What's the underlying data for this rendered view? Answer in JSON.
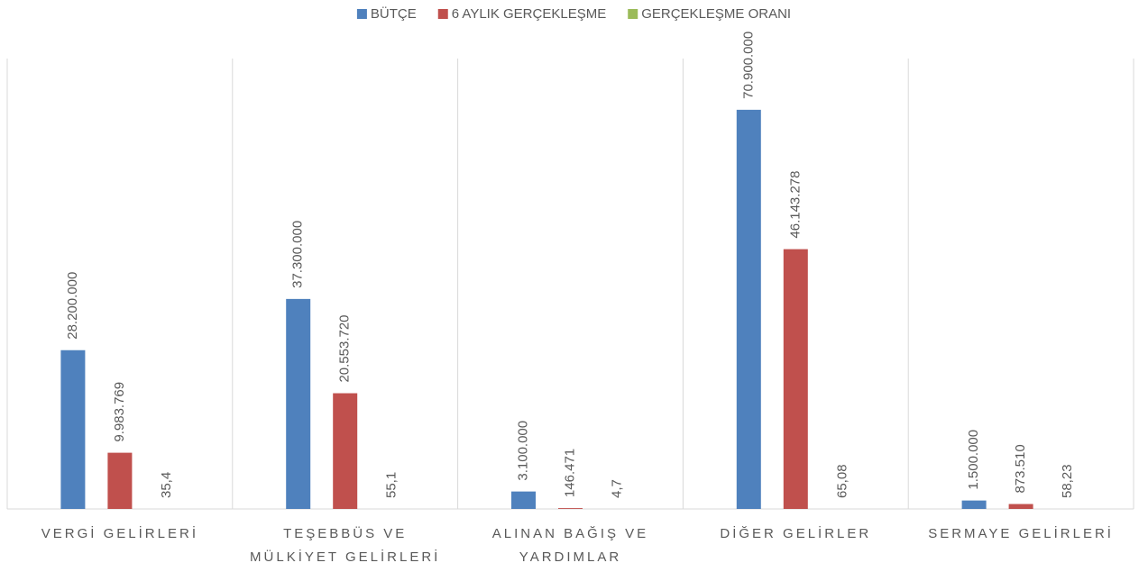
{
  "chart_data": {
    "type": "bar",
    "categories": [
      "VERGİ GELİRLERİ",
      "TEŞEBBÜS VE MÜLKİYET GELİRLERİ",
      "ALINAN BAĞIŞ VE YARDIMLAR",
      "DİĞER GELİRLER",
      "SERMAYE GELİRLERİ"
    ],
    "series": [
      {
        "name": "BÜTÇE",
        "color": "#4f81bd",
        "values": [
          28200000,
          37300000,
          3100000,
          70900000,
          1500000
        ],
        "value_labels": [
          "28.200.000",
          "37.300.000",
          "3.100.000",
          "70.900.000",
          "1.500.000"
        ]
      },
      {
        "name": "6 AYLIK GERÇEKLEŞME",
        "color": "#c0504d",
        "values": [
          9983769,
          20553720,
          146471,
          46143278,
          873510
        ],
        "value_labels": [
          "9.983.769",
          "20.553.720",
          "146.471",
          "46.143.278",
          "873.510"
        ]
      },
      {
        "name": "GERÇEKLEŞME ORANI",
        "color": "#9bbb59",
        "values": [
          35.4,
          55.1,
          4.7,
          65.08,
          58.23
        ],
        "value_labels": [
          "35,4",
          "55,1",
          "4,7",
          "65,08",
          "58,23"
        ]
      }
    ],
    "ylim": [
      0,
      80000000
    ],
    "legend": "top"
  }
}
